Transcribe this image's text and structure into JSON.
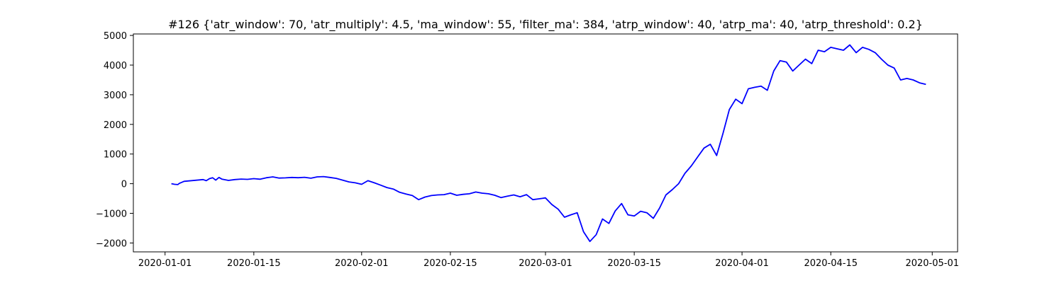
{
  "chart_data": {
    "type": "line",
    "title": "#126 {'atr_window': 70, 'atr_multiply': 4.5, 'ma_window': 55, 'filter_ma': 384, 'atrp_window': 40, 'atrp_ma': 40, 'atrp_threshold': 0.2}",
    "xlabel": "",
    "ylabel": "",
    "x_axis": {
      "type": "date",
      "range": [
        "2019-12-27",
        "2020-05-05"
      ],
      "tick_labels": [
        "2020-01-01",
        "2020-01-15",
        "2020-02-01",
        "2020-02-15",
        "2020-03-01",
        "2020-03-15",
        "2020-04-01",
        "2020-04-15",
        "2020-05-01"
      ]
    },
    "y_axis": {
      "range": [
        -2300,
        5050
      ],
      "ticks": [
        -2000,
        -1000,
        0,
        1000,
        2000,
        3000,
        4000,
        5000
      ],
      "tick_labels": [
        "−2000",
        "−1000",
        "0",
        "1000",
        "2000",
        "3000",
        "4000",
        "5000"
      ]
    },
    "grid": false,
    "legend": "none",
    "series": [
      {
        "color": "#0000ff",
        "points": [
          [
            "2020-01-02",
            0
          ],
          [
            "2020-01-02 12:00",
            -20
          ],
          [
            "2020-01-03",
            -30
          ],
          [
            "2020-01-03 06:00",
            10
          ],
          [
            "2020-01-04",
            80
          ],
          [
            "2020-01-07",
            140
          ],
          [
            "2020-01-07 12:00",
            100
          ],
          [
            "2020-01-08",
            170
          ],
          [
            "2020-01-08 12:00",
            200
          ],
          [
            "2020-01-09",
            120
          ],
          [
            "2020-01-09 12:00",
            210
          ],
          [
            "2020-01-10",
            150
          ],
          [
            "2020-01-11",
            110
          ],
          [
            "2020-01-12",
            140
          ],
          [
            "2020-01-13",
            155
          ],
          [
            "2020-01-14",
            145
          ],
          [
            "2020-01-15",
            170
          ],
          [
            "2020-01-16",
            150
          ],
          [
            "2020-01-17",
            200
          ],
          [
            "2020-01-18",
            230
          ],
          [
            "2020-01-19",
            190
          ],
          [
            "2020-01-20",
            195
          ],
          [
            "2020-01-21",
            210
          ],
          [
            "2020-01-22",
            200
          ],
          [
            "2020-01-23",
            215
          ],
          [
            "2020-01-24",
            185
          ],
          [
            "2020-01-25",
            230
          ],
          [
            "2020-01-26",
            240
          ],
          [
            "2020-01-27",
            210
          ],
          [
            "2020-01-28",
            180
          ],
          [
            "2020-01-29",
            120
          ],
          [
            "2020-01-30",
            60
          ],
          [
            "2020-01-31",
            30
          ],
          [
            "2020-02-01",
            -20
          ],
          [
            "2020-02-02",
            100
          ],
          [
            "2020-02-03",
            30
          ],
          [
            "2020-02-04",
            -50
          ],
          [
            "2020-02-05",
            -130
          ],
          [
            "2020-02-06",
            -180
          ],
          [
            "2020-02-07",
            -290
          ],
          [
            "2020-02-08",
            -350
          ],
          [
            "2020-02-09",
            -400
          ],
          [
            "2020-02-10",
            -540
          ],
          [
            "2020-02-11",
            -450
          ],
          [
            "2020-02-12",
            -400
          ],
          [
            "2020-02-13",
            -380
          ],
          [
            "2020-02-14",
            -370
          ],
          [
            "2020-02-15",
            -320
          ],
          [
            "2020-02-16",
            -390
          ],
          [
            "2020-02-17",
            -360
          ],
          [
            "2020-02-18",
            -340
          ],
          [
            "2020-02-19",
            -280
          ],
          [
            "2020-02-20",
            -320
          ],
          [
            "2020-02-21",
            -340
          ],
          [
            "2020-02-22",
            -390
          ],
          [
            "2020-02-23",
            -470
          ],
          [
            "2020-02-24",
            -420
          ],
          [
            "2020-02-25",
            -380
          ],
          [
            "2020-02-26",
            -440
          ],
          [
            "2020-02-27",
            -370
          ],
          [
            "2020-02-28",
            -540
          ],
          [
            "2020-02-29",
            -510
          ],
          [
            "2020-03-01",
            -480
          ],
          [
            "2020-03-02",
            -700
          ],
          [
            "2020-03-03",
            -860
          ],
          [
            "2020-03-04",
            -1130
          ],
          [
            "2020-03-05",
            -1050
          ],
          [
            "2020-03-06",
            -980
          ],
          [
            "2020-03-07",
            -1620
          ],
          [
            "2020-03-08",
            -1950
          ],
          [
            "2020-03-09",
            -1720
          ],
          [
            "2020-03-10",
            -1190
          ],
          [
            "2020-03-11",
            -1340
          ],
          [
            "2020-03-12",
            -920
          ],
          [
            "2020-03-13",
            -670
          ],
          [
            "2020-03-14",
            -1050
          ],
          [
            "2020-03-15",
            -1090
          ],
          [
            "2020-03-16",
            -930
          ],
          [
            "2020-03-17",
            -980
          ],
          [
            "2020-03-18",
            -1170
          ],
          [
            "2020-03-19",
            -820
          ],
          [
            "2020-03-20",
            -380
          ],
          [
            "2020-03-21",
            -200
          ],
          [
            "2020-03-22",
            0
          ],
          [
            "2020-03-23",
            350
          ],
          [
            "2020-03-24",
            600
          ],
          [
            "2020-03-25",
            900
          ],
          [
            "2020-03-26",
            1200
          ],
          [
            "2020-03-27",
            1330
          ],
          [
            "2020-03-28",
            950
          ],
          [
            "2020-03-29",
            1700
          ],
          [
            "2020-03-30",
            2500
          ],
          [
            "2020-03-31",
            2850
          ],
          [
            "2020-04-01",
            2700
          ],
          [
            "2020-04-02",
            3200
          ],
          [
            "2020-04-03",
            3250
          ],
          [
            "2020-04-04",
            3290
          ],
          [
            "2020-04-05",
            3150
          ],
          [
            "2020-04-06",
            3800
          ],
          [
            "2020-04-07",
            4150
          ],
          [
            "2020-04-08",
            4100
          ],
          [
            "2020-04-09",
            3800
          ],
          [
            "2020-04-10",
            4000
          ],
          [
            "2020-04-11",
            4200
          ],
          [
            "2020-04-12",
            4050
          ],
          [
            "2020-04-13",
            4500
          ],
          [
            "2020-04-14",
            4450
          ],
          [
            "2020-04-15",
            4600
          ],
          [
            "2020-04-16",
            4550
          ],
          [
            "2020-04-17",
            4500
          ],
          [
            "2020-04-18",
            4680
          ],
          [
            "2020-04-19",
            4420
          ],
          [
            "2020-04-20",
            4600
          ],
          [
            "2020-04-21",
            4530
          ],
          [
            "2020-04-22",
            4420
          ],
          [
            "2020-04-23",
            4200
          ],
          [
            "2020-04-24",
            4000
          ],
          [
            "2020-04-25",
            3900
          ],
          [
            "2020-04-26",
            3500
          ],
          [
            "2020-04-27",
            3550
          ],
          [
            "2020-04-28",
            3500
          ],
          [
            "2020-04-29",
            3400
          ],
          [
            "2020-04-30",
            3350
          ]
        ]
      }
    ]
  },
  "colors": {
    "line": "#0000ff",
    "axis": "#000000",
    "background": "#ffffff"
  }
}
